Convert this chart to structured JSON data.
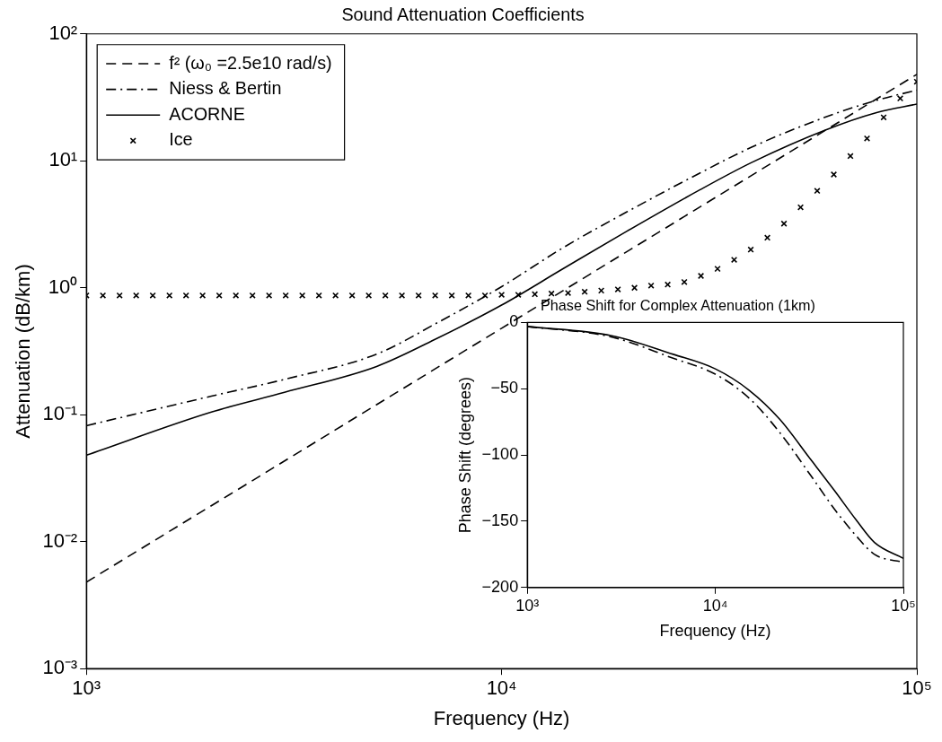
{
  "chart_data": [
    {
      "type": "line",
      "title": "Sound Attenuation Coefficients",
      "xlabel": "Frequency (Hz)",
      "ylabel": "Attenuation (dB/km)",
      "log": "xy",
      "grid": false,
      "legend": "top left",
      "xlim": [
        1000,
        100000
      ],
      "xticks": [
        {
          "value": 1000,
          "label": "10³"
        },
        {
          "value": 10000,
          "label": "10⁴"
        },
        {
          "value": 100000,
          "label": "10⁵"
        }
      ],
      "ylim": [
        0.001,
        100
      ],
      "yticks": [
        {
          "value": 0.001,
          "label": "10⁻³"
        },
        {
          "value": 0.01,
          "label": "10⁻²"
        },
        {
          "value": 0.1,
          "label": "10⁻¹"
        },
        {
          "value": 1,
          "label": "10⁰"
        },
        {
          "value": 10,
          "label": "10¹"
        },
        {
          "value": 100,
          "label": "10²"
        }
      ],
      "series": [
        {
          "name": "f² (ω₀ =2.5e10 rad/s)",
          "type": "line",
          "color": "#000000",
          "line_style": "dashed",
          "marker": "none",
          "x": [
            1000,
            10000,
            100000
          ],
          "values": [
            0.0048,
            0.48,
            48
          ]
        },
        {
          "name": "Niess & Bertin",
          "type": "line",
          "color": "#000000",
          "line_style": "dashdot",
          "marker": "none",
          "x": [
            1000,
            2000,
            3000,
            5000,
            7000,
            10000,
            14000,
            20000,
            30000,
            40000,
            60000,
            80000,
            100000
          ],
          "values": [
            0.082,
            0.14,
            0.19,
            0.3,
            0.53,
            1.02,
            2.05,
            3.95,
            8.0,
            12.8,
            22,
            30,
            36
          ]
        },
        {
          "name": "ACORNE",
          "type": "line",
          "color": "#000000",
          "line_style": "solid",
          "marker": "none",
          "x": [
            1000,
            2000,
            3000,
            5000,
            7000,
            10000,
            14000,
            20000,
            30000,
            40000,
            60000,
            80000,
            100000
          ],
          "values": [
            0.048,
            0.105,
            0.15,
            0.24,
            0.4,
            0.73,
            1.4,
            2.78,
            5.9,
            9.7,
            17.4,
            24,
            28
          ]
        },
        {
          "name": "Ice",
          "type": "scatter",
          "color": "#000000",
          "marker": "cross",
          "x": [
            1000,
            1096,
            1202,
            1318,
            1445,
            1585,
            1738,
            1905,
            2089,
            2291,
            2512,
            2754,
            3020,
            3311,
            3631,
            3981,
            4365,
            4786,
            5248,
            5754,
            6310,
            6918,
            7586,
            8318,
            9120,
            10000,
            10965,
            12023,
            13183,
            14454,
            15849,
            17378,
            19055,
            20893,
            22909,
            25119,
            27542,
            30200,
            33113,
            36308,
            39811,
            43652,
            47863,
            52481,
            57544,
            63096,
            69183,
            75858,
            83176,
            91201,
            100000
          ],
          "values": [
            0.87,
            0.87,
            0.87,
            0.87,
            0.87,
            0.87,
            0.87,
            0.87,
            0.87,
            0.87,
            0.87,
            0.87,
            0.87,
            0.87,
            0.87,
            0.87,
            0.87,
            0.87,
            0.87,
            0.87,
            0.87,
            0.87,
            0.87,
            0.87,
            0.87,
            0.88,
            0.88,
            0.89,
            0.9,
            0.91,
            0.93,
            0.95,
            0.97,
            1.0,
            1.04,
            1.06,
            1.11,
            1.24,
            1.41,
            1.66,
            2.0,
            2.48,
            3.2,
            4.3,
            5.8,
            7.8,
            10.9,
            15,
            22,
            31,
            42
          ]
        }
      ]
    },
    {
      "type": "line",
      "title": "Phase Shift for Complex Attenuation (1km)",
      "xlabel": "Frequency (Hz)",
      "ylabel": "Phase Shift (degrees)",
      "log": "x",
      "grid": false,
      "xlim": [
        1000,
        100000
      ],
      "xticks": [
        {
          "value": 1000,
          "label": "10³"
        },
        {
          "value": 10000,
          "label": "10⁴"
        },
        {
          "value": 100000,
          "label": "10⁵"
        }
      ],
      "ylim": [
        -200,
        0
      ],
      "yticks": [
        {
          "value": -200,
          "label": "−200"
        },
        {
          "value": -150,
          "label": "−150"
        },
        {
          "value": -100,
          "label": "−100"
        },
        {
          "value": -50,
          "label": "−50"
        },
        0
      ],
      "series": [
        {
          "type": "line",
          "color": "#000000",
          "line_style": "solid",
          "marker": "none",
          "x": [
            1000,
            2820,
            5970,
            10000,
            15100,
            22000,
            32000,
            43100,
            56100,
            70200,
            100000
          ],
          "values": [
            -3,
            -10,
            -24,
            -35,
            -51,
            -73,
            -103,
            -127,
            -149,
            -166,
            -178
          ]
        },
        {
          "type": "line",
          "color": "#000000",
          "line_style": "dashdot",
          "marker": "none",
          "x": [
            1000,
            2820,
            5970,
            10000,
            15100,
            22000,
            32000,
            43100,
            56100,
            70200,
            100000
          ],
          "values": [
            -3,
            -11,
            -27,
            -39,
            -57,
            -83,
            -115,
            -141,
            -161,
            -175,
            -181
          ]
        }
      ]
    }
  ]
}
